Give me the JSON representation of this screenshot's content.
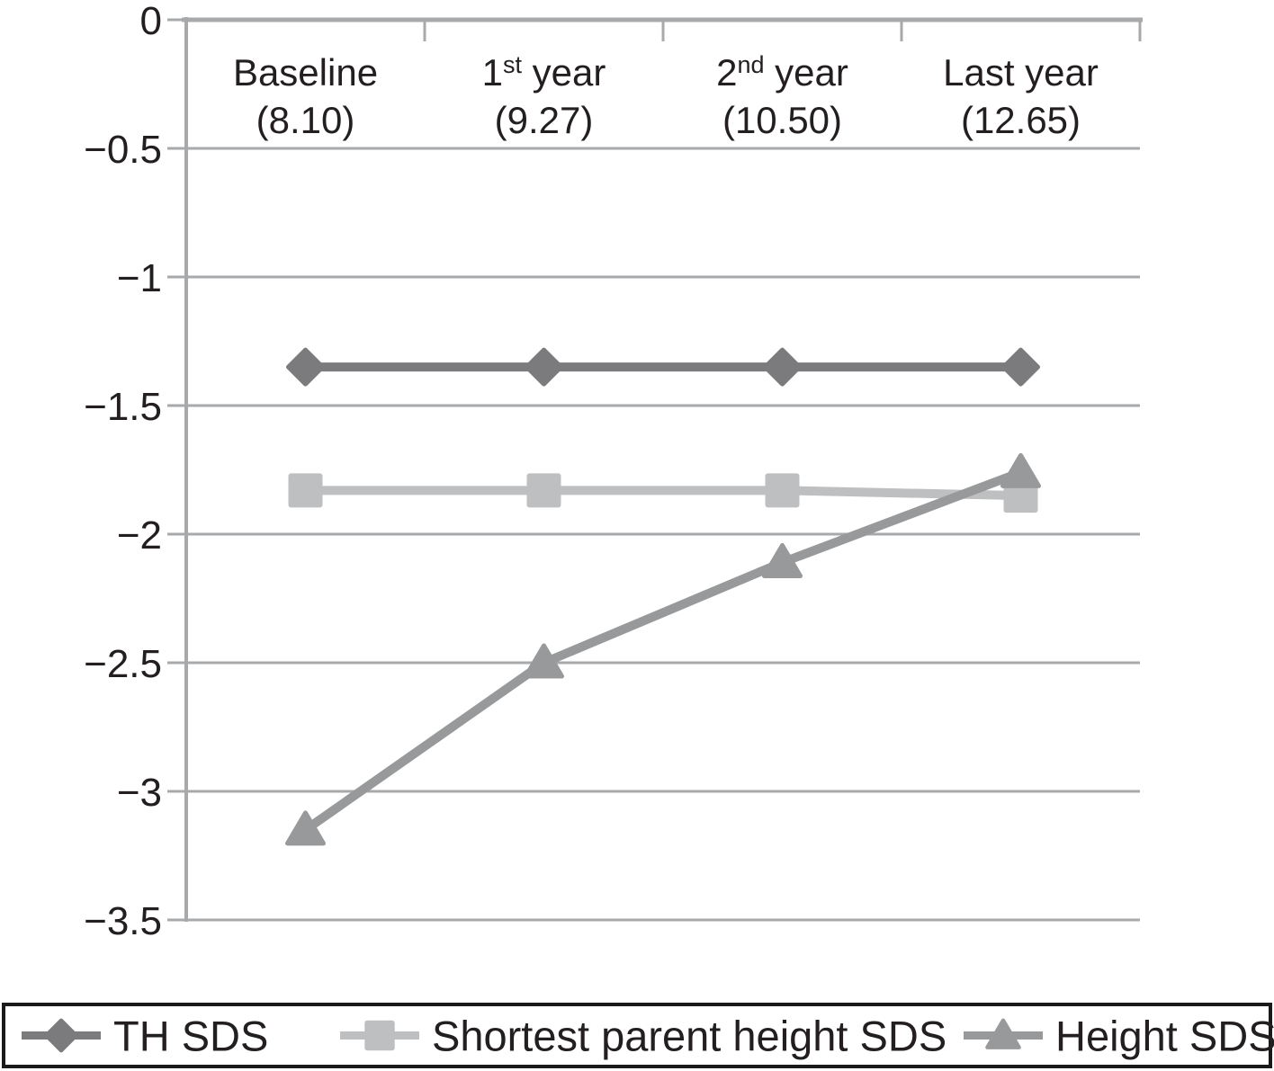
{
  "chart_data": {
    "type": "line",
    "title": "",
    "xlabel": "",
    "ylabel": "",
    "grid": true,
    "legend_position": "bottom",
    "x_axis": {
      "categories": [
        {
          "pre": "Baseline",
          "sup": "",
          "post": "",
          "sub": "(8.10)"
        },
        {
          "pre": "1",
          "sup": "st",
          "post": " year",
          "sub": "(9.27)"
        },
        {
          "pre": "2",
          "sup": "nd",
          "post": " year",
          "sub": "(10.50)"
        },
        {
          "pre": "Last year",
          "sup": "",
          "post": "",
          "sub": "(12.65)"
        }
      ]
    },
    "y_axis": {
      "max": 0,
      "min": -3.5,
      "step": 0.5,
      "tick_labels": [
        "0",
        "−0.5",
        "−1",
        "−1.5",
        "−2",
        "−2.5",
        "−3",
        "−3.5"
      ]
    },
    "series": [
      {
        "name": "TH SDS",
        "marker": "diamond",
        "color": "#7b7b7d",
        "values": [
          -1.35,
          -1.35,
          -1.35,
          -1.35
        ]
      },
      {
        "name": "Shortest parent height SDS",
        "marker": "square",
        "color": "#bdbfc1",
        "values": [
          -1.83,
          -1.83,
          -1.83,
          -1.85
        ]
      },
      {
        "name": "Height SDS",
        "marker": "triangle",
        "color": "#97999b",
        "values": [
          -3.15,
          -2.5,
          -2.11,
          -1.76
        ]
      }
    ]
  },
  "colors": {
    "grid": "#a7a9ab",
    "axis": "#a7a9ab",
    "text": "#231f20",
    "legend_border": "#1a1a1a",
    "background": "#ffffff"
  }
}
